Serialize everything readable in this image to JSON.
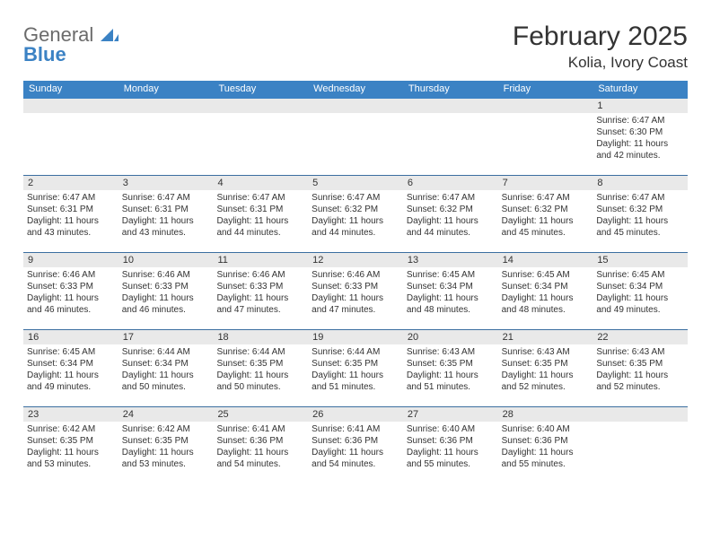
{
  "logo": {
    "word1": "General",
    "word2": "Blue"
  },
  "header": {
    "title": "February 2025",
    "location": "Kolia, Ivory Coast"
  },
  "colors": {
    "header_bar": "#3b82c4",
    "header_text": "#ffffff",
    "row_border": "#3b6ea0",
    "daynum_bg": "#e9e9e9",
    "text": "#333333",
    "logo_gray": "#6b6b6b",
    "logo_blue": "#3b82c4"
  },
  "day_names": [
    "Sunday",
    "Monday",
    "Tuesday",
    "Wednesday",
    "Thursday",
    "Friday",
    "Saturday"
  ],
  "weeks": [
    [
      {
        "num": "",
        "sunrise": "",
        "sunset": "",
        "daylight": ""
      },
      {
        "num": "",
        "sunrise": "",
        "sunset": "",
        "daylight": ""
      },
      {
        "num": "",
        "sunrise": "",
        "sunset": "",
        "daylight": ""
      },
      {
        "num": "",
        "sunrise": "",
        "sunset": "",
        "daylight": ""
      },
      {
        "num": "",
        "sunrise": "",
        "sunset": "",
        "daylight": ""
      },
      {
        "num": "",
        "sunrise": "",
        "sunset": "",
        "daylight": ""
      },
      {
        "num": "1",
        "sunrise": "Sunrise: 6:47 AM",
        "sunset": "Sunset: 6:30 PM",
        "daylight": "Daylight: 11 hours and 42 minutes."
      }
    ],
    [
      {
        "num": "2",
        "sunrise": "Sunrise: 6:47 AM",
        "sunset": "Sunset: 6:31 PM",
        "daylight": "Daylight: 11 hours and 43 minutes."
      },
      {
        "num": "3",
        "sunrise": "Sunrise: 6:47 AM",
        "sunset": "Sunset: 6:31 PM",
        "daylight": "Daylight: 11 hours and 43 minutes."
      },
      {
        "num": "4",
        "sunrise": "Sunrise: 6:47 AM",
        "sunset": "Sunset: 6:31 PM",
        "daylight": "Daylight: 11 hours and 44 minutes."
      },
      {
        "num": "5",
        "sunrise": "Sunrise: 6:47 AM",
        "sunset": "Sunset: 6:32 PM",
        "daylight": "Daylight: 11 hours and 44 minutes."
      },
      {
        "num": "6",
        "sunrise": "Sunrise: 6:47 AM",
        "sunset": "Sunset: 6:32 PM",
        "daylight": "Daylight: 11 hours and 44 minutes."
      },
      {
        "num": "7",
        "sunrise": "Sunrise: 6:47 AM",
        "sunset": "Sunset: 6:32 PM",
        "daylight": "Daylight: 11 hours and 45 minutes."
      },
      {
        "num": "8",
        "sunrise": "Sunrise: 6:47 AM",
        "sunset": "Sunset: 6:32 PM",
        "daylight": "Daylight: 11 hours and 45 minutes."
      }
    ],
    [
      {
        "num": "9",
        "sunrise": "Sunrise: 6:46 AM",
        "sunset": "Sunset: 6:33 PM",
        "daylight": "Daylight: 11 hours and 46 minutes."
      },
      {
        "num": "10",
        "sunrise": "Sunrise: 6:46 AM",
        "sunset": "Sunset: 6:33 PM",
        "daylight": "Daylight: 11 hours and 46 minutes."
      },
      {
        "num": "11",
        "sunrise": "Sunrise: 6:46 AM",
        "sunset": "Sunset: 6:33 PM",
        "daylight": "Daylight: 11 hours and 47 minutes."
      },
      {
        "num": "12",
        "sunrise": "Sunrise: 6:46 AM",
        "sunset": "Sunset: 6:33 PM",
        "daylight": "Daylight: 11 hours and 47 minutes."
      },
      {
        "num": "13",
        "sunrise": "Sunrise: 6:45 AM",
        "sunset": "Sunset: 6:34 PM",
        "daylight": "Daylight: 11 hours and 48 minutes."
      },
      {
        "num": "14",
        "sunrise": "Sunrise: 6:45 AM",
        "sunset": "Sunset: 6:34 PM",
        "daylight": "Daylight: 11 hours and 48 minutes."
      },
      {
        "num": "15",
        "sunrise": "Sunrise: 6:45 AM",
        "sunset": "Sunset: 6:34 PM",
        "daylight": "Daylight: 11 hours and 49 minutes."
      }
    ],
    [
      {
        "num": "16",
        "sunrise": "Sunrise: 6:45 AM",
        "sunset": "Sunset: 6:34 PM",
        "daylight": "Daylight: 11 hours and 49 minutes."
      },
      {
        "num": "17",
        "sunrise": "Sunrise: 6:44 AM",
        "sunset": "Sunset: 6:34 PM",
        "daylight": "Daylight: 11 hours and 50 minutes."
      },
      {
        "num": "18",
        "sunrise": "Sunrise: 6:44 AM",
        "sunset": "Sunset: 6:35 PM",
        "daylight": "Daylight: 11 hours and 50 minutes."
      },
      {
        "num": "19",
        "sunrise": "Sunrise: 6:44 AM",
        "sunset": "Sunset: 6:35 PM",
        "daylight": "Daylight: 11 hours and 51 minutes."
      },
      {
        "num": "20",
        "sunrise": "Sunrise: 6:43 AM",
        "sunset": "Sunset: 6:35 PM",
        "daylight": "Daylight: 11 hours and 51 minutes."
      },
      {
        "num": "21",
        "sunrise": "Sunrise: 6:43 AM",
        "sunset": "Sunset: 6:35 PM",
        "daylight": "Daylight: 11 hours and 52 minutes."
      },
      {
        "num": "22",
        "sunrise": "Sunrise: 6:43 AM",
        "sunset": "Sunset: 6:35 PM",
        "daylight": "Daylight: 11 hours and 52 minutes."
      }
    ],
    [
      {
        "num": "23",
        "sunrise": "Sunrise: 6:42 AM",
        "sunset": "Sunset: 6:35 PM",
        "daylight": "Daylight: 11 hours and 53 minutes."
      },
      {
        "num": "24",
        "sunrise": "Sunrise: 6:42 AM",
        "sunset": "Sunset: 6:35 PM",
        "daylight": "Daylight: 11 hours and 53 minutes."
      },
      {
        "num": "25",
        "sunrise": "Sunrise: 6:41 AM",
        "sunset": "Sunset: 6:36 PM",
        "daylight": "Daylight: 11 hours and 54 minutes."
      },
      {
        "num": "26",
        "sunrise": "Sunrise: 6:41 AM",
        "sunset": "Sunset: 6:36 PM",
        "daylight": "Daylight: 11 hours and 54 minutes."
      },
      {
        "num": "27",
        "sunrise": "Sunrise: 6:40 AM",
        "sunset": "Sunset: 6:36 PM",
        "daylight": "Daylight: 11 hours and 55 minutes."
      },
      {
        "num": "28",
        "sunrise": "Sunrise: 6:40 AM",
        "sunset": "Sunset: 6:36 PM",
        "daylight": "Daylight: 11 hours and 55 minutes."
      },
      {
        "num": "",
        "sunrise": "",
        "sunset": "",
        "daylight": ""
      }
    ]
  ]
}
